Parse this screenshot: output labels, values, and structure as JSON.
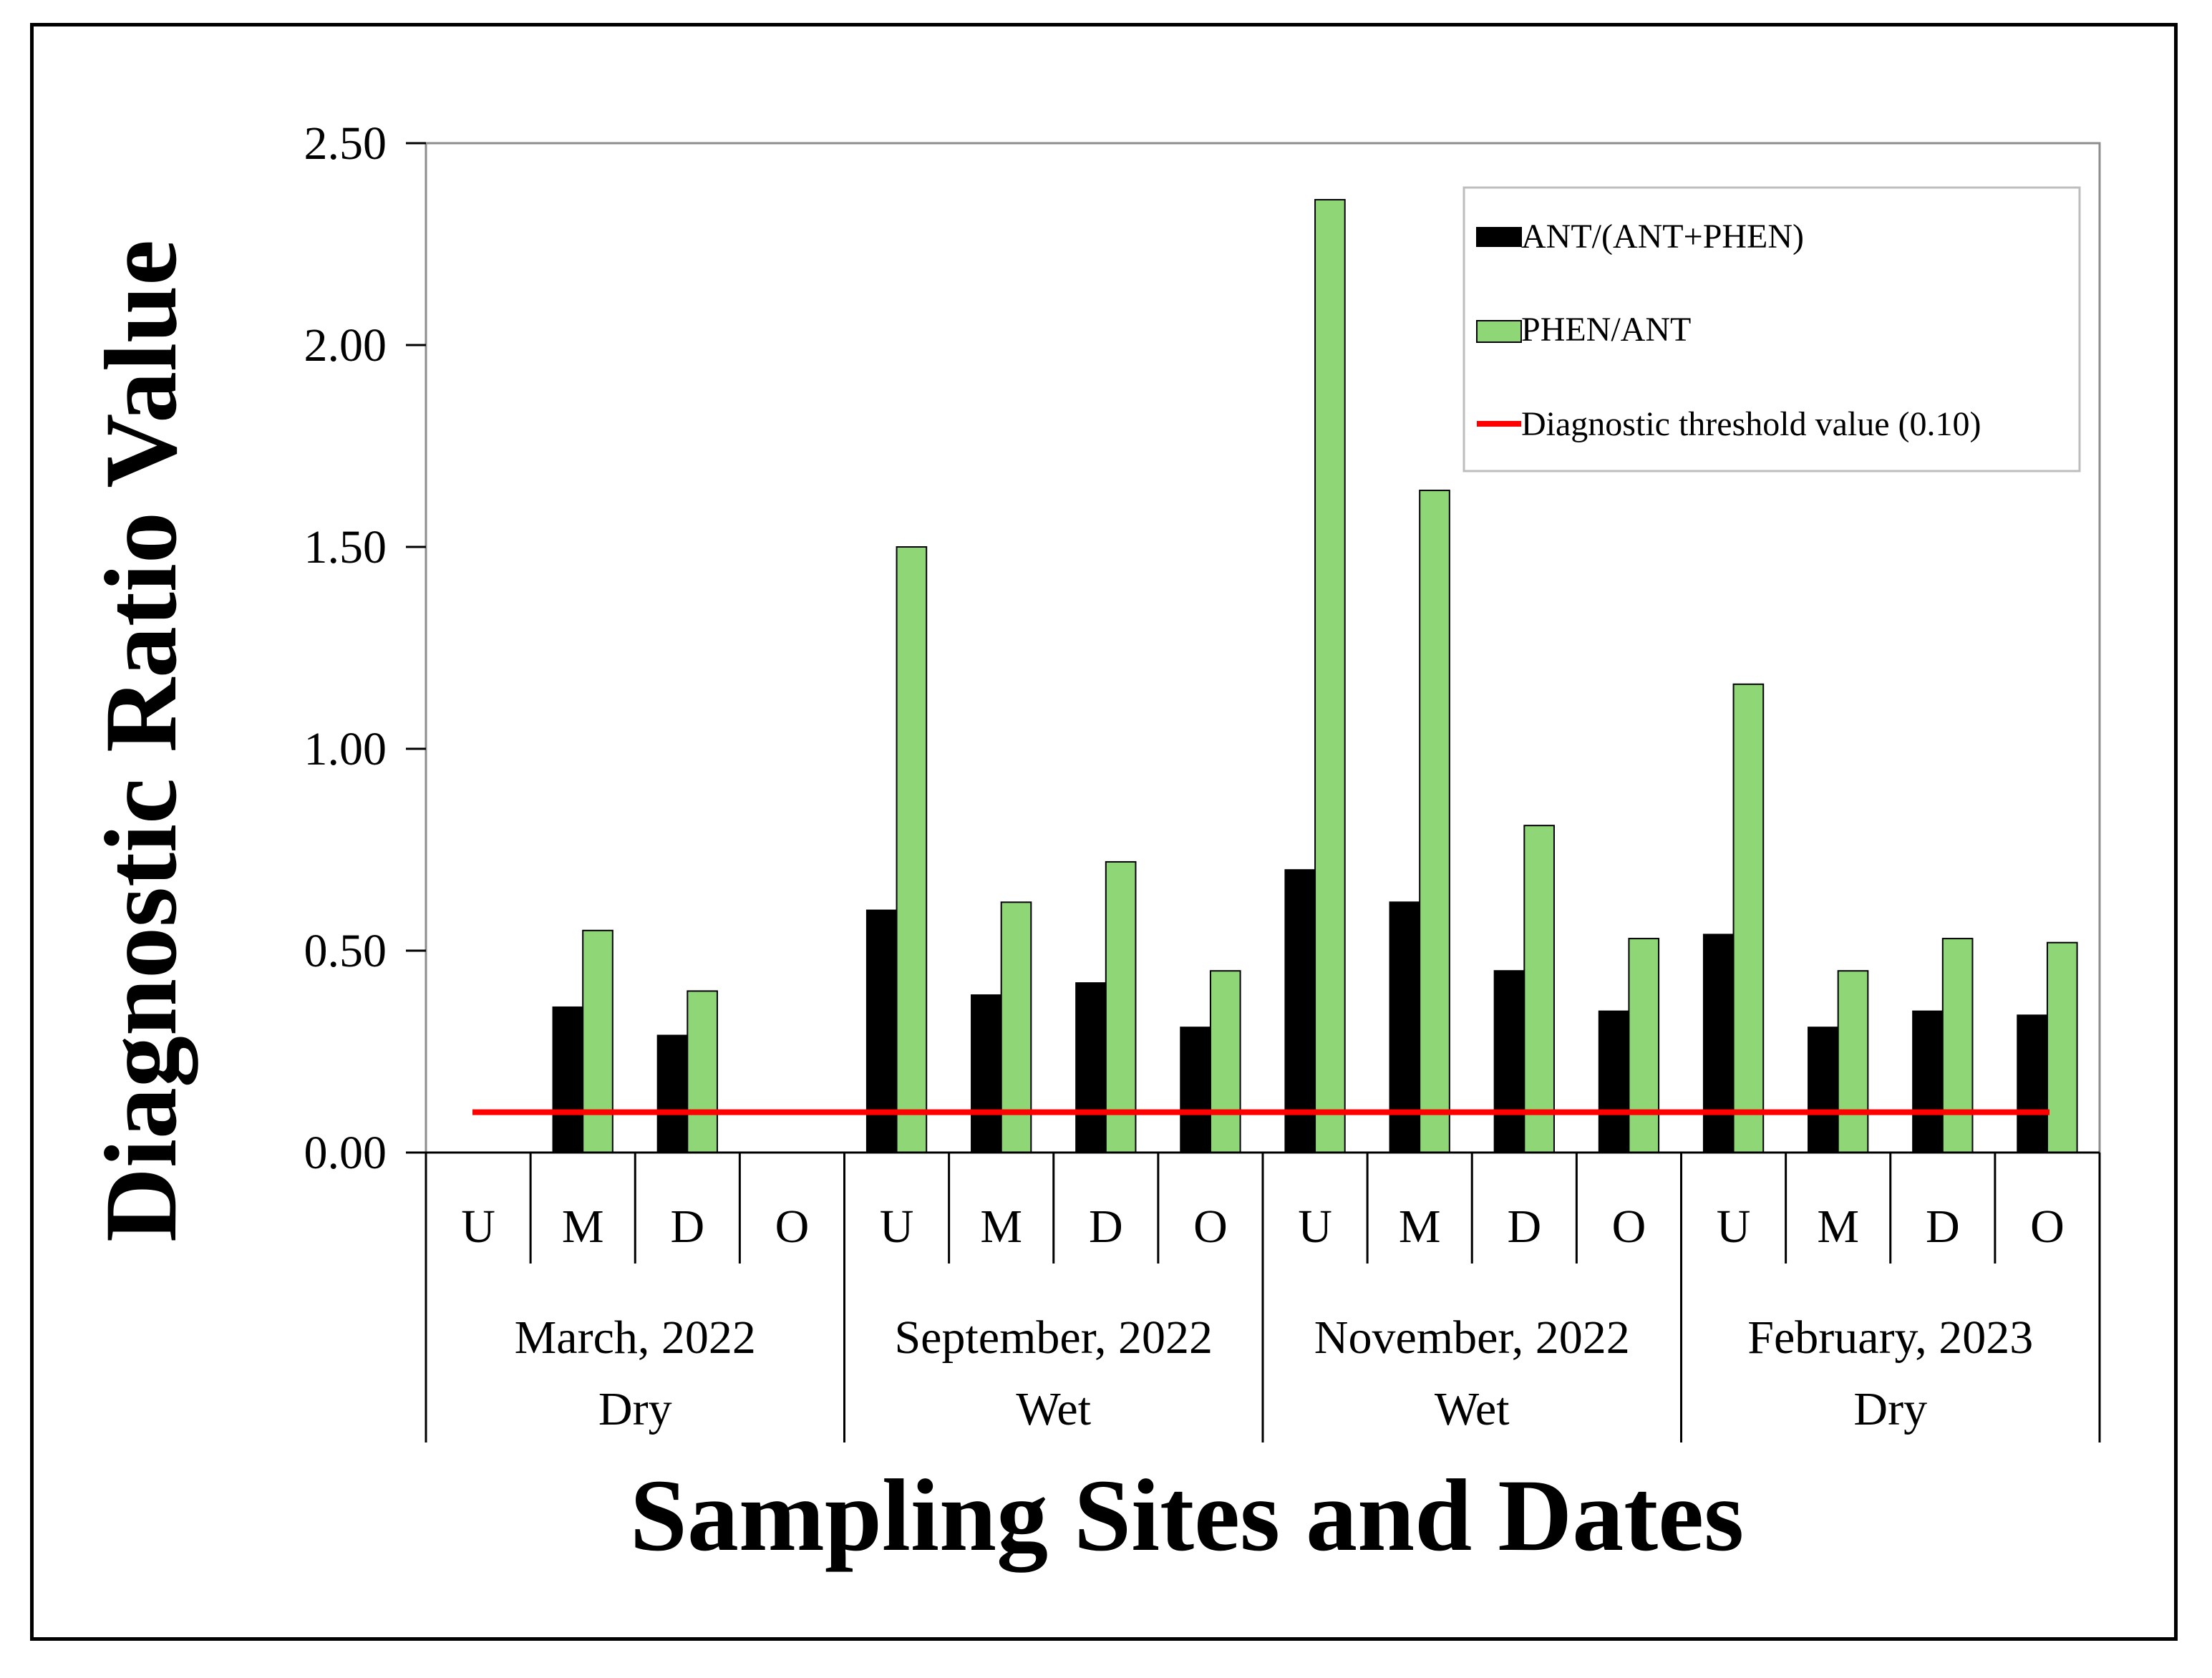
{
  "chart_data": {
    "type": "bar",
    "title": "",
    "xlabel": "Sampling Sites and Dates",
    "ylabel": "Diagnostic Ratio Value",
    "ylim": [
      0,
      2.5
    ],
    "yticks": [
      "0.00",
      "0.50",
      "1.00",
      "1.50",
      "2.00",
      "2.50"
    ],
    "ytick_values": [
      0,
      0.5,
      1.0,
      1.5,
      2.0,
      2.5
    ],
    "categories": [
      "U",
      "M",
      "D",
      "O",
      "U",
      "M",
      "D",
      "O",
      "U",
      "M",
      "D",
      "O",
      "U",
      "M",
      "D",
      "O"
    ],
    "groups": [
      {
        "date": "March, 2022",
        "season": "Dry"
      },
      {
        "date": "September, 2022",
        "season": "Wet"
      },
      {
        "date": "November, 2022",
        "season": "Wet"
      },
      {
        "date": "February, 2023",
        "season": "Dry"
      }
    ],
    "series": [
      {
        "name": "ANT/(ANT+PHEN)",
        "color": "#000000",
        "values": [
          0,
          0.36,
          0.29,
          0,
          0.6,
          0.39,
          0.42,
          0.31,
          0.7,
          0.62,
          0.45,
          0.35,
          0.54,
          0.31,
          0.35,
          0.34
        ]
      },
      {
        "name": "PHEN/ANT",
        "color": "#8fd776",
        "values": [
          0,
          0.55,
          0.4,
          0,
          1.5,
          0.62,
          0.72,
          0.45,
          2.36,
          1.64,
          0.81,
          0.53,
          1.16,
          0.45,
          0.53,
          0.52
        ]
      }
    ],
    "threshold": {
      "name": "Diagnostic threshold value (0.10)",
      "value": 0.1,
      "color": "#ff0000"
    },
    "legend_position": "top-right",
    "grid": false
  }
}
